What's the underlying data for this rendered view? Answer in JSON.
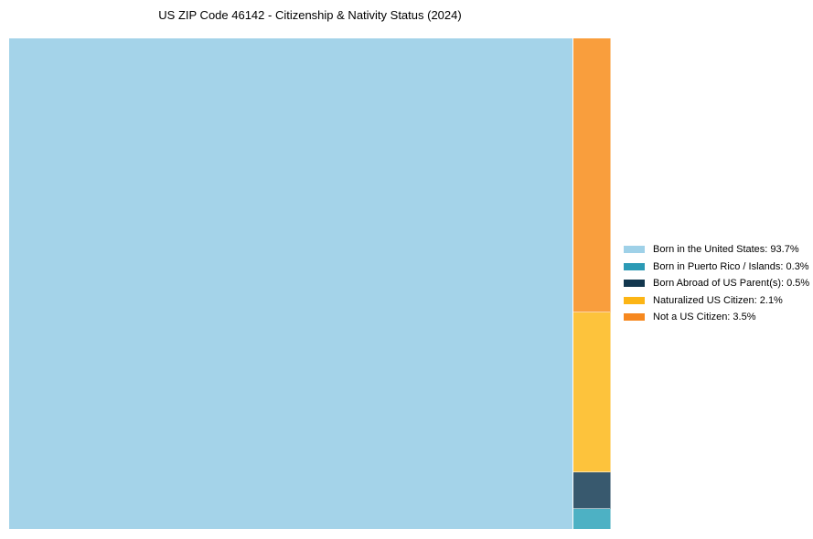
{
  "title": "US ZIP Code 46142 - Citizenship & Nativity Status (2024)",
  "chart_data": {
    "type": "treemap",
    "title": "US ZIP Code 46142 - Citizenship & Nativity Status (2024)",
    "unit": "%",
    "legend_position": "right",
    "categories": [
      "Born in the United States",
      "Born in Puerto Rico / Islands",
      "Born Abroad of US Parent(s)",
      "Naturalized US Citizen",
      "Not a US Citizen"
    ],
    "values": [
      93.7,
      0.3,
      0.5,
      2.1,
      3.5
    ],
    "segments": [
      {
        "name": "Born in the United States",
        "value": 93.7,
        "legend_label": "Born in the United States: 93.7%",
        "legend_color": "#9fd1e8",
        "fill": "#a4d3e9"
      },
      {
        "name": "Born in Puerto Rico / Islands",
        "value": 0.3,
        "legend_label": "Born in Puerto Rico / Islands: 0.3%",
        "legend_color": "#2b9ab5",
        "fill": "#4db1c4"
      },
      {
        "name": "Born Abroad of US Parent(s)",
        "value": 0.5,
        "legend_label": "Born Abroad of US Parent(s): 0.5%",
        "legend_color": "#12374e",
        "fill": "#38596e"
      },
      {
        "name": "Naturalized US Citizen",
        "value": 2.1,
        "legend_label": "Naturalized US Citizen: 2.1%",
        "legend_color": "#fcb515",
        "fill": "#fdc33c"
      },
      {
        "name": "Not a US Citizen",
        "value": 3.5,
        "legend_label": "Not a US Citizen: 3.5%",
        "legend_color": "#f6881f",
        "fill": "#f99e3d"
      }
    ]
  }
}
